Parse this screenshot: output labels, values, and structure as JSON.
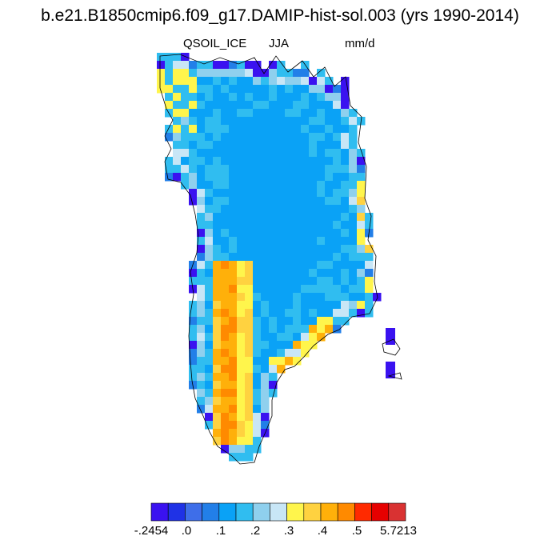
{
  "title": "b.e21.B1850cmip6.f09_g17.DAMIP-hist-sol.003 (yrs 1990-2014)",
  "variable": "QSOIL_ICE",
  "season": "JJA",
  "units": "mm/d",
  "colors": {
    "palette": [
      "#3a12f0",
      "#1f32e6",
      "#3e6ee9",
      "#227fe8",
      "#0aa2f6",
      "#30bdf0",
      "#8fd0ee",
      "#c8e6f6",
      "#fff54c",
      "#ffd240",
      "#ffb00a",
      "#ff8a00",
      "#ff2a00",
      "#e60000",
      "#d93232"
    ]
  },
  "colorbar": {
    "labels": [
      "-.2454",
      ".0",
      ".1",
      ".2",
      ".3",
      ".4",
      ".5",
      "5.7213"
    ]
  },
  "chart_data": {
    "type": "heatmap",
    "title": "b.e21.B1850cmip6.f09_g17.DAMIP-hist-sol.003 (yrs 1990-2014)",
    "subtitle_left": "QSOIL_ICE",
    "subtitle_center": "JJA",
    "subtitle_right": "mm/d",
    "region": "Greenland",
    "levels": [
      -0.2454,
      0.0,
      0.1,
      0.2,
      0.3,
      0.4,
      0.5,
      5.7213
    ],
    "value_summary": {
      "interior": "about 0.0 to 0.1 (medium blue)",
      "margins": "about 0.1 to 0.3 (light blue / cyan)",
      "southwest_coast": "about 0.3 to 0.5 (yellow / orange)",
      "outer_edge_cells": "about -0.2454 to 0.0 (dark blue / violet)"
    }
  }
}
